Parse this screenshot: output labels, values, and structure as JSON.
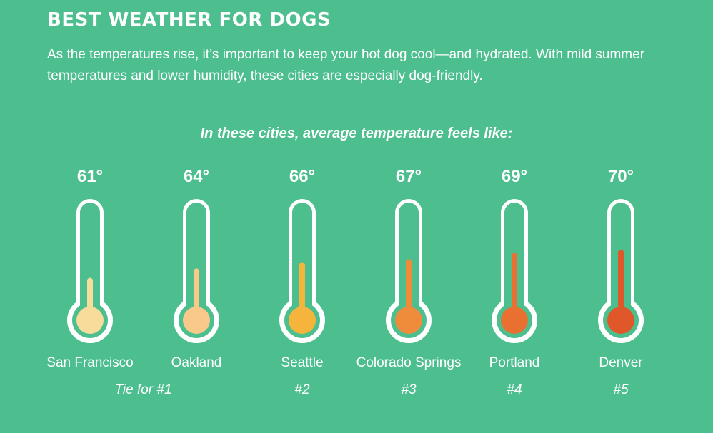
{
  "header": {
    "title": "BEST WEATHER FOR DOGS",
    "intro": "As the temperatures rise, it’s important to keep your hot dog cool—and hydrated. With mild summer temperatures and lower humidity, these cities are especially dog-friendly."
  },
  "chart_data": {
    "type": "bar",
    "title": "In these cities, average temperature feels like:",
    "categories": [
      "San Francisco",
      "Oakland",
      "Seattle",
      "Colorado Springs",
      "Portland",
      "Denver"
    ],
    "values": [
      61,
      64,
      66,
      67,
      69,
      70
    ],
    "value_labels": [
      "61°",
      "64°",
      "66°",
      "67°",
      "69°",
      "70°"
    ],
    "ranks": [
      {
        "label": "Tie for #1",
        "span": [
          0,
          1
        ]
      },
      {
        "label": "#2",
        "span": [
          2,
          2
        ]
      },
      {
        "label": "#3",
        "span": [
          3,
          3
        ]
      },
      {
        "label": "#4",
        "span": [
          4,
          4
        ]
      },
      {
        "label": "#5",
        "span": [
          5,
          5
        ]
      }
    ],
    "colors": [
      "#f7dc9c",
      "#f9c98a",
      "#f5b53c",
      "#ef8c3c",
      "#ea7031",
      "#e0572a"
    ],
    "grid": false
  }
}
